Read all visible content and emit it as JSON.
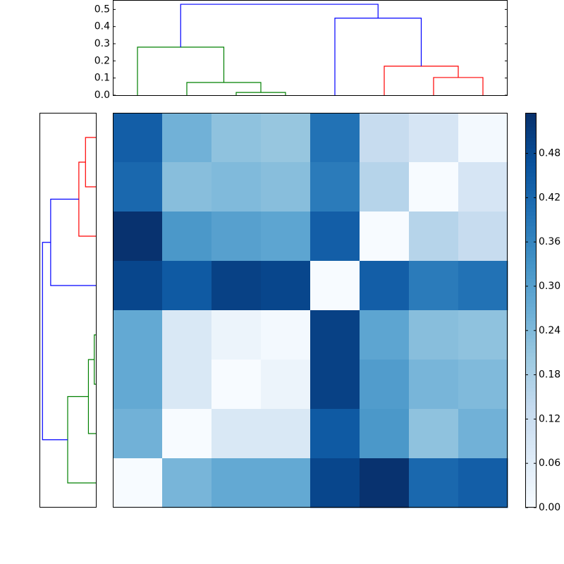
{
  "chart_data": {
    "type": "heatmap",
    "colormap": "Blues",
    "clim": [
      0,
      0.535
    ],
    "matrix": [
      [
        0.44,
        0.26,
        0.22,
        0.21,
        0.4,
        0.13,
        0.09,
        0.01
      ],
      [
        0.42,
        0.23,
        0.24,
        0.23,
        0.38,
        0.16,
        0.0,
        0.09
      ],
      [
        0.53,
        0.32,
        0.3,
        0.29,
        0.44,
        0.0,
        0.16,
        0.13
      ],
      [
        0.49,
        0.45,
        0.5,
        0.49,
        0.0,
        0.44,
        0.38,
        0.4
      ],
      [
        0.28,
        0.08,
        0.03,
        0.01,
        0.5,
        0.29,
        0.23,
        0.22
      ],
      [
        0.28,
        0.08,
        0.0,
        0.03,
        0.5,
        0.31,
        0.25,
        0.24
      ],
      [
        0.26,
        0.0,
        0.08,
        0.08,
        0.45,
        0.32,
        0.22,
        0.26
      ],
      [
        0.0,
        0.25,
        0.28,
        0.28,
        0.49,
        0.53,
        0.42,
        0.44
      ]
    ],
    "colorbar_ticks": [
      {
        "value": 0,
        "label": "0.00"
      },
      {
        "value": 0.06,
        "label": "0.06"
      },
      {
        "value": 0.12,
        "label": "0.12"
      },
      {
        "value": 0.18,
        "label": "0.18"
      },
      {
        "value": 0.24,
        "label": "0.24"
      },
      {
        "value": 0.3,
        "label": "0.30"
      },
      {
        "value": 0.36,
        "label": "0.36"
      },
      {
        "value": 0.42,
        "label": "0.42"
      },
      {
        "value": 0.48,
        "label": "0.48"
      }
    ],
    "dendrogram": {
      "xlim": [
        0,
        80
      ],
      "ylim": [
        0,
        0.555
      ],
      "left_xlim": [
        0.56,
        0
      ],
      "yticks": [
        {
          "value": 0,
          "label": "0.0"
        },
        {
          "value": 0.1,
          "label": "0.1"
        },
        {
          "value": 0.2,
          "label": "0.2"
        },
        {
          "value": 0.3,
          "label": "0.3"
        },
        {
          "value": 0.4,
          "label": "0.4"
        },
        {
          "value": 0.5,
          "label": "0.5"
        }
      ],
      "links": [
        {
          "color": "#008000",
          "x": [
            25,
            25,
            35,
            35
          ],
          "y": [
            0,
            0.016,
            0.016,
            0
          ]
        },
        {
          "color": "#008000",
          "x": [
            15,
            15,
            30,
            30
          ],
          "y": [
            0,
            0.074,
            0.074,
            0.016
          ]
        },
        {
          "color": "#008000",
          "x": [
            5,
            5,
            22.5,
            22.5
          ],
          "y": [
            0,
            0.28,
            0.28,
            0.074
          ]
        },
        {
          "color": "#ff0000",
          "x": [
            65,
            65,
            75,
            75
          ],
          "y": [
            0,
            0.103,
            0.103,
            0
          ]
        },
        {
          "color": "#ff0000",
          "x": [
            55,
            55,
            70,
            70
          ],
          "y": [
            0,
            0.169,
            0.169,
            0.103
          ]
        },
        {
          "color": "#0000ff",
          "x": [
            45,
            45,
            62.5,
            62.5
          ],
          "y": [
            0,
            0.449,
            0.449,
            0.169
          ]
        },
        {
          "color": "#0000ff",
          "x": [
            13.75,
            13.75,
            53.75,
            53.75
          ],
          "y": [
            0.28,
            0.53,
            0.53,
            0.449
          ]
        }
      ]
    }
  }
}
